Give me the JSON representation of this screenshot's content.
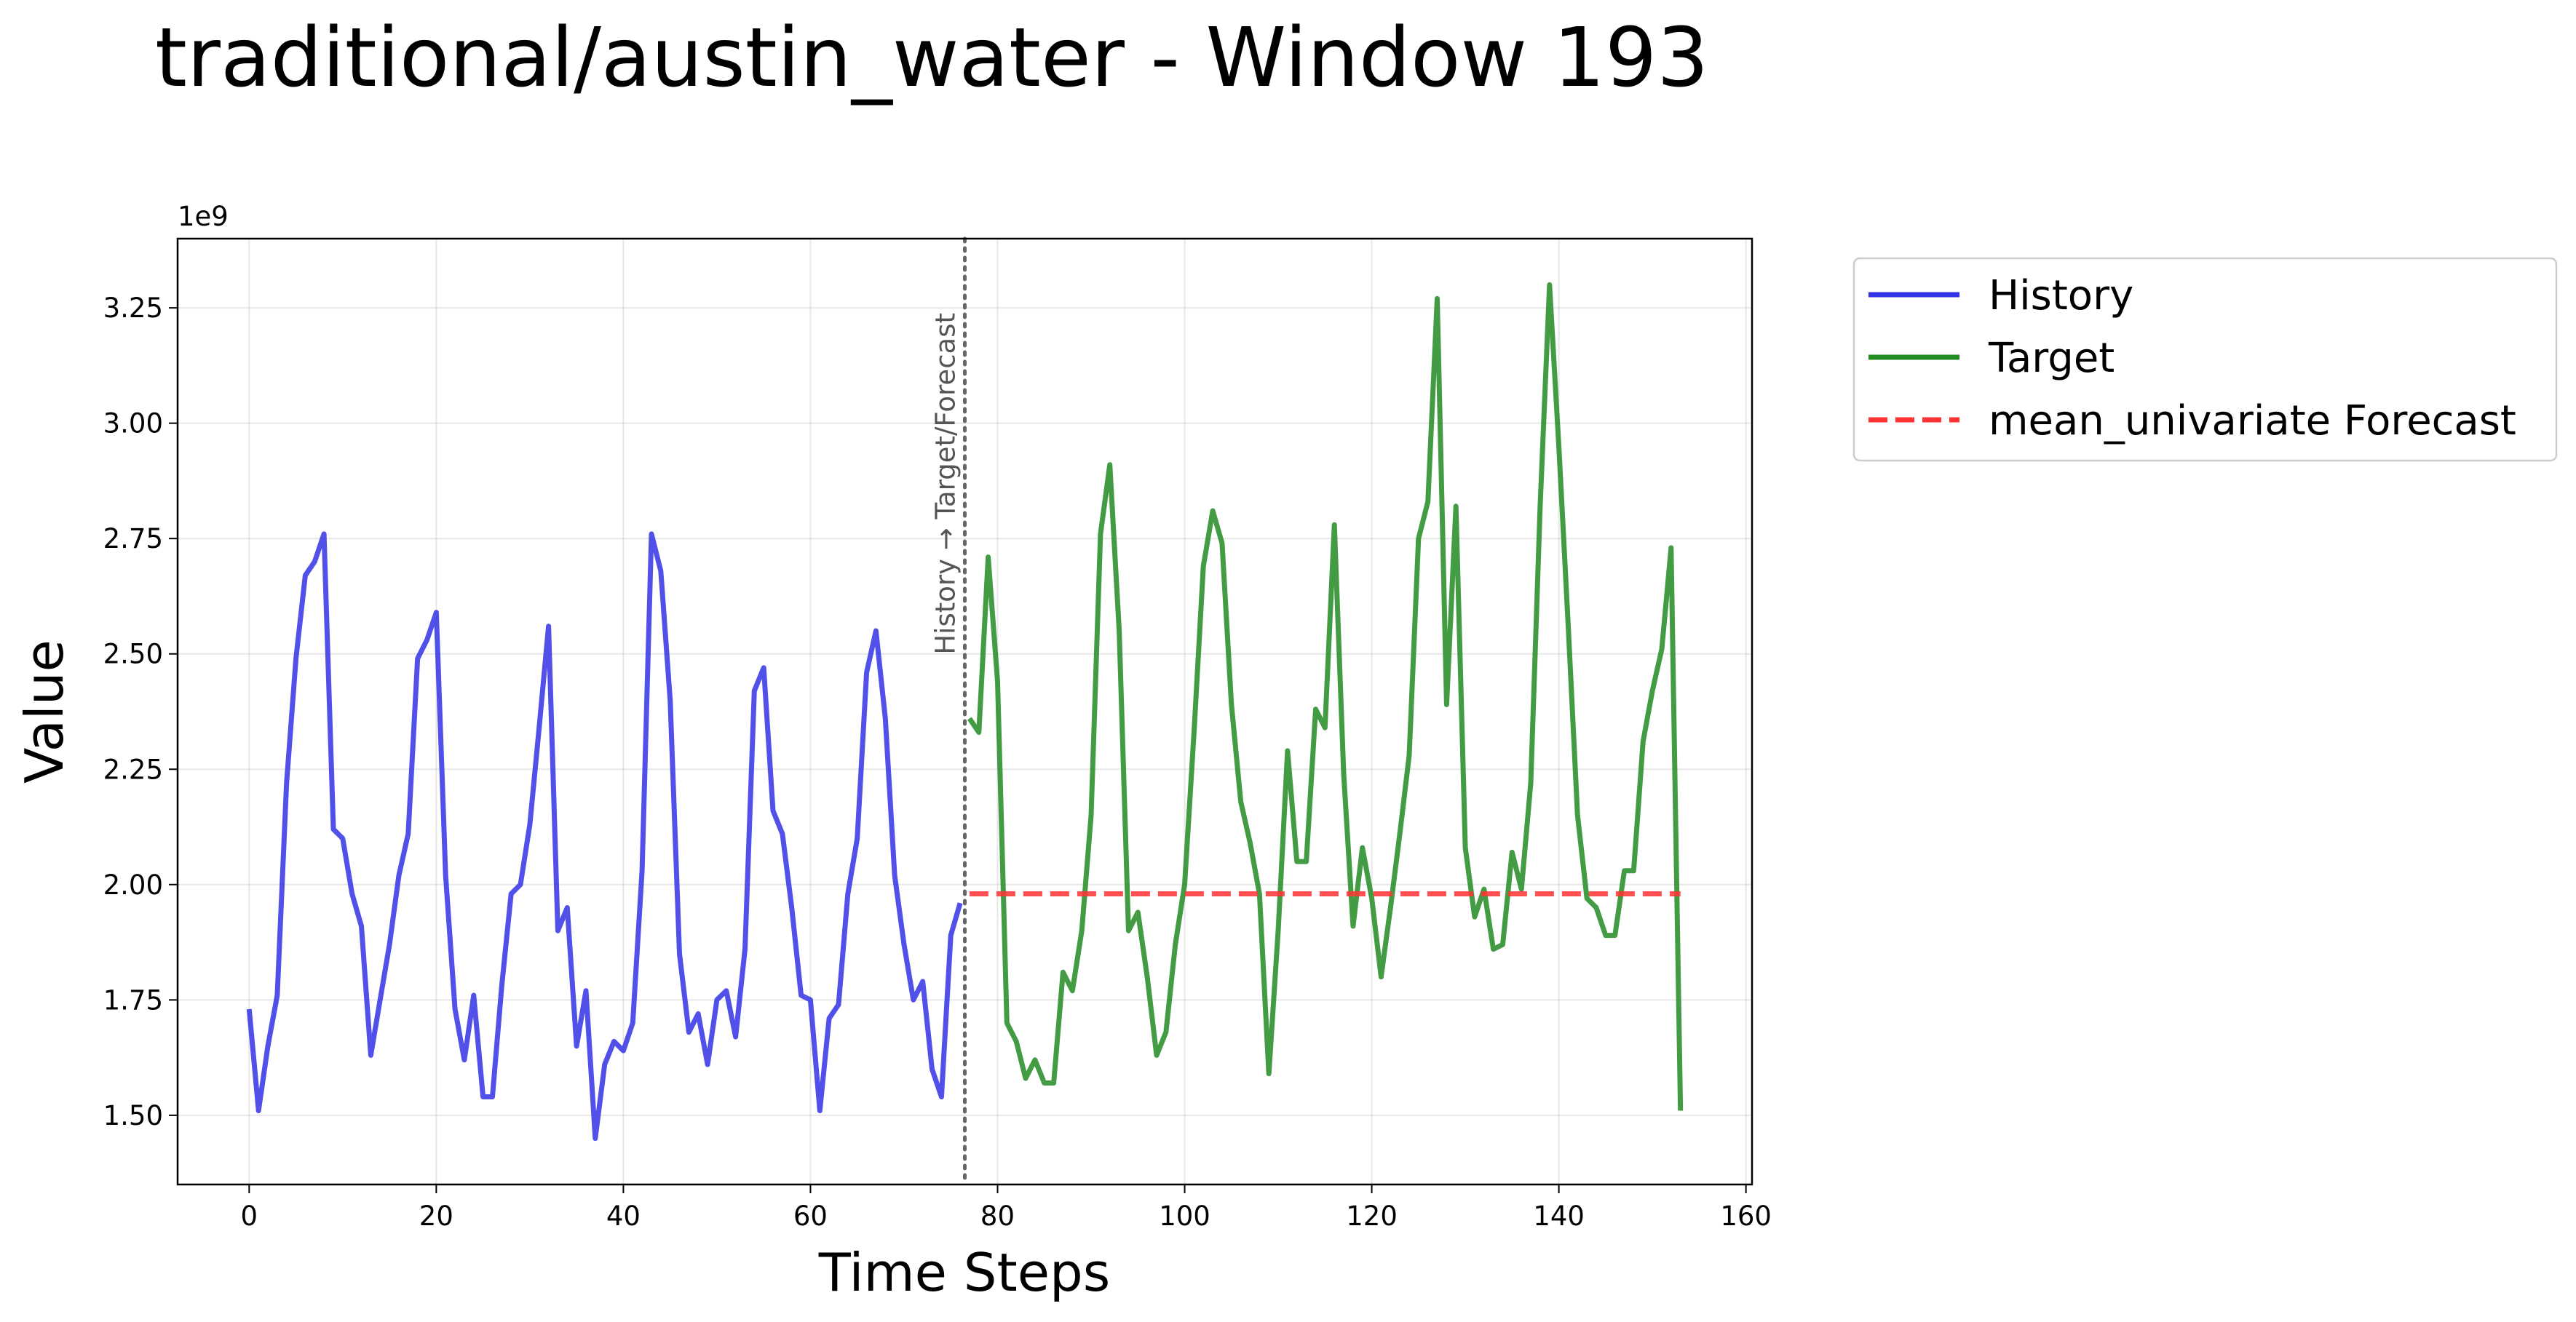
{
  "chart_data": {
    "type": "line",
    "title": "traditional/austin_water - Window 193",
    "xlabel": "Time Steps",
    "ylabel": "Value",
    "y_exponent_label": "1e9",
    "xlim": [
      -7.65,
      160.65
    ],
    "ylim": [
      1350000000.0,
      3400000000.0
    ],
    "x_ticks": [
      0,
      20,
      40,
      60,
      80,
      100,
      120,
      140,
      160
    ],
    "x_tick_labels": [
      "0",
      "20",
      "40",
      "60",
      "80",
      "100",
      "120",
      "140",
      "160"
    ],
    "y_ticks": [
      1500000000.0,
      1750000000.0,
      2000000000.0,
      2250000000.0,
      2500000000.0,
      2750000000.0,
      3000000000.0,
      3250000000.0
    ],
    "y_tick_labels": [
      "1.50",
      "1.75",
      "2.00",
      "2.25",
      "2.50",
      "2.75",
      "3.00",
      "3.25"
    ],
    "grid": true,
    "legend_placement": "outside-top-right",
    "divider": {
      "x": 76.5,
      "label": "History → Target/Forecast",
      "color": "#666666"
    },
    "series": [
      {
        "name": "History",
        "color": "#3333e6",
        "style": "solid",
        "x_start": 0,
        "values": [
          1730000000.0,
          1510000000.0,
          1650000000.0,
          1760000000.0,
          2220000000.0,
          2490000000.0,
          2670000000.0,
          2700000000.0,
          2760000000.0,
          2120000000.0,
          2100000000.0,
          1980000000.0,
          1910000000.0,
          1630000000.0,
          1750000000.0,
          1870000000.0,
          2020000000.0,
          2110000000.0,
          2490000000.0,
          2530000000.0,
          2590000000.0,
          2020000000.0,
          1730000000.0,
          1620000000.0,
          1760000000.0,
          1540000000.0,
          1540000000.0,
          1780000000.0,
          1980000000.0,
          2000000000.0,
          2130000000.0,
          2340000000.0,
          2560000000.0,
          1900000000.0,
          1950000000.0,
          1650000000.0,
          1770000000.0,
          1450000000.0,
          1610000000.0,
          1660000000.0,
          1640000000.0,
          1700000000.0,
          2030000000.0,
          2760000000.0,
          2680000000.0,
          2400000000.0,
          1850000000.0,
          1680000000.0,
          1720000000.0,
          1610000000.0,
          1750000000.0,
          1770000000.0,
          1670000000.0,
          1860000000.0,
          2420000000.0,
          2470000000.0,
          2160000000.0,
          2110000000.0,
          1950000000.0,
          1760000000.0,
          1750000000.0,
          1510000000.0,
          1710000000.0,
          1740000000.0,
          1980000000.0,
          2100000000.0,
          2460000000.0,
          2550000000.0,
          2360000000.0,
          2020000000.0,
          1870000000.0,
          1750000000.0,
          1790000000.0,
          1600000000.0,
          1540000000.0,
          1890000000.0,
          1960000000.0
        ]
      },
      {
        "name": "Target",
        "color": "#228b22",
        "style": "solid",
        "x_start": 77,
        "values": [
          2360000000.0,
          2330000000.0,
          2710000000.0,
          2440000000.0,
          1700000000.0,
          1660000000.0,
          1580000000.0,
          1620000000.0,
          1570000000.0,
          1570000000.0,
          1810000000.0,
          1770000000.0,
          1900000000.0,
          2150000000.0,
          2760000000.0,
          2910000000.0,
          2550000000.0,
          1900000000.0,
          1940000000.0,
          1800000000.0,
          1630000000.0,
          1680000000.0,
          1870000000.0,
          2000000000.0,
          2330000000.0,
          2690000000.0,
          2810000000.0,
          2740000000.0,
          2390000000.0,
          2180000000.0,
          2090000000.0,
          1980000000.0,
          1590000000.0,
          1900000000.0,
          2290000000.0,
          2050000000.0,
          2050000000.0,
          2380000000.0,
          2340000000.0,
          2780000000.0,
          2240000000.0,
          1910000000.0,
          2080000000.0,
          1970000000.0,
          1800000000.0,
          1950000000.0,
          2110000000.0,
          2280000000.0,
          2750000000.0,
          2830000000.0,
          3270000000.0,
          2390000000.0,
          2820000000.0,
          2080000000.0,
          1930000000.0,
          1990000000.0,
          1860000000.0,
          1870000000.0,
          2070000000.0,
          1990000000.0,
          2220000000.0,
          2820000000.0,
          3300000000.0,
          2950000000.0,
          2560000000.0,
          2150000000.0,
          1970000000.0,
          1950000000.0,
          1890000000.0,
          1890000000.0,
          2030000000.0,
          2030000000.0,
          2310000000.0,
          2420000000.0,
          2510000000.0,
          2730000000.0,
          1510000000.0
        ]
      },
      {
        "name": "mean_univariate Forecast",
        "color": "#ff3333",
        "style": "dashed",
        "x_start": 77,
        "x_end": 153,
        "constant": 1980000000.0
      }
    ]
  }
}
